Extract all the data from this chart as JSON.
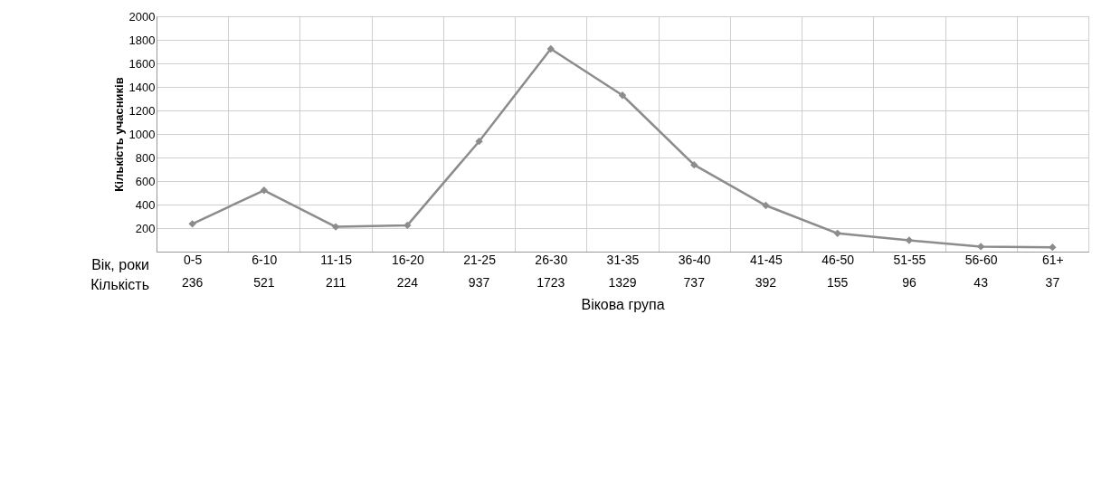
{
  "chart_data": {
    "type": "line",
    "xlabel": "Вікова група",
    "ylabel": "Кількість учасників",
    "categories": [
      "0-5",
      "6-10",
      "11-15",
      "16-20",
      "21-25",
      "26-30",
      "31-35",
      "36-40",
      "41-45",
      "46-50",
      "51-55",
      "56-60",
      "61+"
    ],
    "series": [
      {
        "color": "#8c8c8c",
        "values": [
          236,
          521,
          211,
          224,
          937,
          1723,
          1329,
          737,
          392,
          155,
          96,
          43,
          37
        ]
      }
    ],
    "ylim": [
      0,
      2000
    ],
    "yticks": [
      200,
      400,
      600,
      800,
      1000,
      1200,
      1400,
      1600,
      1800,
      2000
    ],
    "grid": true,
    "marker": "diamond",
    "line_style": "solid",
    "data_labels": true,
    "annotations": [
      "Вік, роки",
      "Кількість"
    ]
  }
}
